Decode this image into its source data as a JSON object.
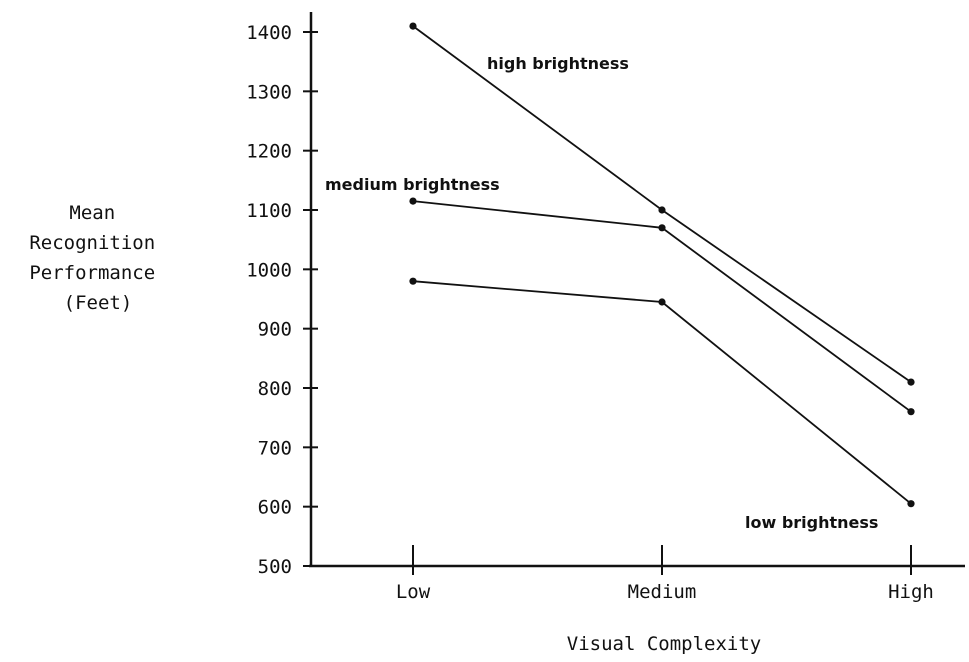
{
  "chart_data": {
    "type": "line",
    "title": "",
    "xlabel": "Visual Complexity",
    "ylabel_lines": [
      "Mean",
      "Recognition",
      "Performance",
      "(Feet)"
    ],
    "categories": [
      "Low",
      "Medium",
      "High"
    ],
    "ylim": [
      500,
      1400
    ],
    "yticks": [
      "1400",
      "1300",
      "1200",
      "1100",
      "1000",
      "900",
      "800",
      "700",
      "600",
      "500"
    ],
    "grid": false,
    "legend": "labels placed next to lines",
    "series": [
      {
        "name": "high brightness",
        "values": [
          1410,
          1100,
          810
        ]
      },
      {
        "name": "medium brightness",
        "values": [
          1115,
          1070,
          760
        ]
      },
      {
        "name": "low brightness",
        "values": [
          980,
          945,
          605
        ]
      }
    ],
    "line_color": "#111111"
  }
}
